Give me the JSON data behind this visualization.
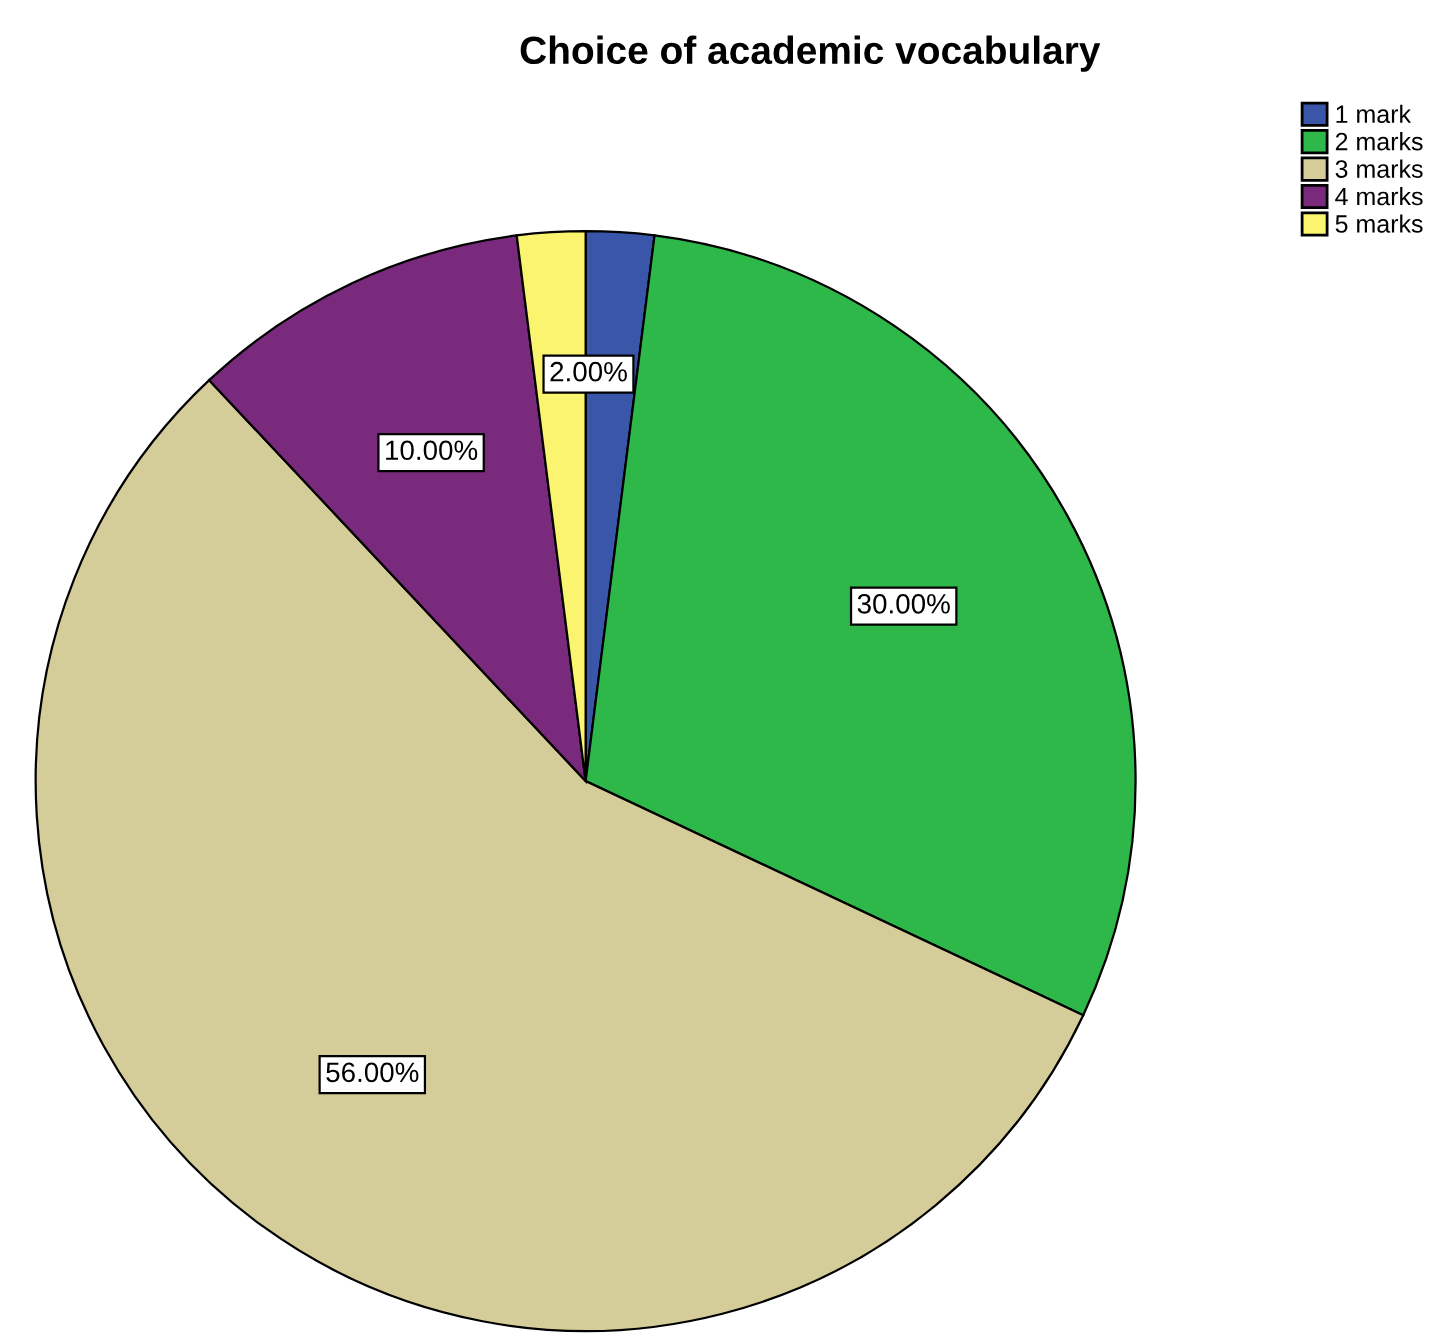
{
  "chart_data": {
    "type": "pie",
    "title": "Choice of academic vocabulary",
    "categories": [
      "1 mark",
      "2 marks",
      "3 marks",
      "4 marks",
      "5 marks"
    ],
    "values": [
      2,
      30,
      56,
      10,
      2
    ],
    "colors": [
      "#3a56a8",
      "#2eb84a",
      "#d4cd99",
      "#7a2a7c",
      "#fbf46f"
    ],
    "value_labels": [
      null,
      "30.00%",
      "56.00%",
      "10.00%",
      "2.00%"
    ],
    "legend": "top right"
  }
}
